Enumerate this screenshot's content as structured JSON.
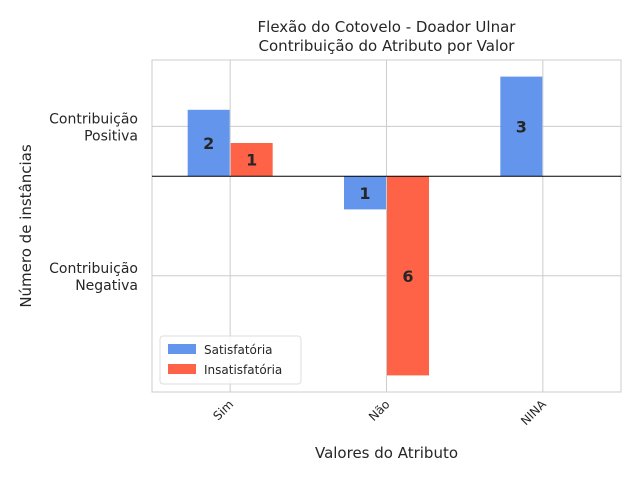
{
  "chart_data": {
    "type": "bar",
    "title": "Flexão do Cotovelo - Doador Ulnar\nContribuição do Atributo por Valor",
    "xlabel": "Valores do Atributo",
    "ylabel": "Número de instâncias",
    "categories": [
      "Sim",
      "Não",
      "NINA"
    ],
    "series": [
      {
        "name": "Satisfatória",
        "color": "#6495ED",
        "values": [
          2,
          -1,
          3
        ]
      },
      {
        "name": "Insatisfatória",
        "color": "#FF6347",
        "values": [
          1,
          -6,
          0
        ]
      }
    ],
    "ylim": [
      -6.5,
      3.5
    ],
    "y_tick_values": [
      1.5,
      -3
    ],
    "y_tick_labels": [
      "Contribuição\nPositiva",
      "Contribuição\nNegativa"
    ],
    "grid": true,
    "legend_position": "lower-left",
    "zero_line": true
  }
}
